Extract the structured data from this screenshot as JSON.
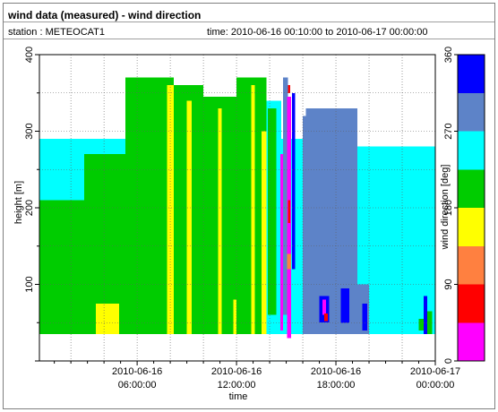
{
  "header": {
    "title": "wind data (measured) - wind direction",
    "station": "station : METEOCAT1",
    "time_range": "time: 2010-06-16 00:10:00 to 2010-06-17 00:00:00"
  },
  "colors": {
    "magenta": "#ff00ff",
    "red": "#ff0000",
    "orange": "#ff8040",
    "yellow": "#ffff00",
    "green": "#00cc00",
    "lightgreen": "#33dd33",
    "cyan": "#00ffff",
    "steel": "#5d83c8",
    "blue": "#0000ff"
  },
  "chart_data": {
    "type": "heatmap",
    "xlabel": "time",
    "ylabel": "height [m]",
    "colorbar_label": "wind direction [deg]",
    "x_ticks": [
      {
        "value": 6,
        "date": "2010-06-16",
        "time": "06:00:00"
      },
      {
        "value": 12,
        "date": "2010-06-16",
        "time": "12:00:00"
      },
      {
        "value": 18,
        "date": "2010-06-16",
        "time": "18:00:00"
      },
      {
        "value": 24,
        "date": "2010-06-17",
        "time": "00:00:00"
      }
    ],
    "xlim_hours": [
      0.1,
      24
    ],
    "ylim": [
      0,
      400
    ],
    "y_ticks": [
      100,
      200,
      300,
      400
    ],
    "colorbar": {
      "range": [
        0,
        360
      ],
      "ticks": [
        0,
        90,
        180,
        270,
        360
      ],
      "bins": [
        {
          "from": 0,
          "to": 45,
          "color": "#ff00ff"
        },
        {
          "from": 45,
          "to": 90,
          "color": "#ff0000"
        },
        {
          "from": 90,
          "to": 135,
          "color": "#ff8040"
        },
        {
          "from": 135,
          "to": 180,
          "color": "#ffff00"
        },
        {
          "from": 180,
          "to": 225,
          "color": "#00cc00"
        },
        {
          "from": 225,
          "to": 270,
          "color": "#00ffff"
        },
        {
          "from": 270,
          "to": 315,
          "color": "#5d83c8"
        },
        {
          "from": 315,
          "to": 360,
          "color": "#0000ff"
        }
      ]
    },
    "grid": true,
    "regions": [
      {
        "t0": 0.1,
        "t1": 5.3,
        "h0": 35,
        "h1": 290,
        "dir": 250
      },
      {
        "t0": 5.3,
        "t1": 13.8,
        "h0": 35,
        "h1": 250,
        "dir": 200
      },
      {
        "t0": 13.8,
        "t1": 14.7,
        "h0": 35,
        "h1": 340,
        "dir": 250
      },
      {
        "t0": 14.7,
        "t1": 16.2,
        "h0": 35,
        "h1": 290,
        "dir": 250
      },
      {
        "t0": 16.2,
        "t1": 19.3,
        "h0": 35,
        "h1": 330,
        "dir": 290
      },
      {
        "t0": 19.3,
        "t1": 24,
        "h0": 35,
        "h1": 280,
        "dir": 250
      },
      {
        "t0": 0.1,
        "t1": 2.8,
        "h0": 35,
        "h1": 210,
        "dir": 200
      },
      {
        "t0": 2.8,
        "t1": 5.3,
        "h0": 35,
        "h1": 270,
        "dir": 200
      },
      {
        "t0": 5.3,
        "t1": 8.2,
        "h0": 35,
        "h1": 370,
        "dir": 200
      },
      {
        "t0": 8.2,
        "t1": 10.0,
        "h0": 35,
        "h1": 360,
        "dir": 210
      },
      {
        "t0": 10.0,
        "t1": 12.0,
        "h0": 35,
        "h1": 345,
        "dir": 200
      },
      {
        "t0": 12.0,
        "t1": 13.8,
        "h0": 35,
        "h1": 370,
        "dir": 205
      },
      {
        "t0": 3.5,
        "t1": 4.9,
        "h0": 35,
        "h1": 75,
        "dir": 160
      },
      {
        "t0": 7.8,
        "t1": 8.2,
        "h0": 35,
        "h1": 360,
        "dir": 160
      },
      {
        "t0": 9.0,
        "t1": 9.3,
        "h0": 35,
        "h1": 340,
        "dir": 160
      },
      {
        "t0": 10.9,
        "t1": 11.1,
        "h0": 35,
        "h1": 330,
        "dir": 160
      },
      {
        "t0": 12.9,
        "t1": 13.1,
        "h0": 35,
        "h1": 360,
        "dir": 160
      },
      {
        "t0": 13.5,
        "t1": 13.8,
        "h0": 35,
        "h1": 300,
        "dir": 160
      },
      {
        "t0": 11.8,
        "t1": 12.0,
        "h0": 35,
        "h1": 80,
        "dir": 160
      },
      {
        "t0": 13.9,
        "t1": 14.4,
        "h0": 60,
        "h1": 330,
        "dir": 200
      },
      {
        "t0": 15.5,
        "t1": 16.2,
        "h0": 150,
        "h1": 290,
        "dir": 250
      },
      {
        "t0": 16.0,
        "t1": 16.5,
        "h0": 35,
        "h1": 320,
        "dir": 290
      },
      {
        "t0": 19.3,
        "t1": 20.0,
        "h0": 35,
        "h1": 100,
        "dir": 290
      },
      {
        "t0": 14.8,
        "t1": 15.1,
        "h0": 60,
        "h1": 370,
        "dir": 300
      },
      {
        "t0": 15.1,
        "t1": 15.25,
        "h0": 80,
        "h1": 340,
        "dir": 330
      },
      {
        "t0": 15.35,
        "t1": 15.55,
        "h0": 120,
        "h1": 350,
        "dir": 320
      },
      {
        "t0": 14.65,
        "t1": 14.8,
        "h0": 40,
        "h1": 270,
        "dir": 20
      },
      {
        "t0": 15.05,
        "t1": 15.3,
        "h0": 30,
        "h1": 345,
        "dir": 20
      },
      {
        "t0": 15.1,
        "t1": 15.25,
        "h0": 180,
        "h1": 210,
        "dir": 60
      },
      {
        "t0": 15.1,
        "t1": 15.25,
        "h0": 350,
        "h1": 360,
        "dir": 60
      },
      {
        "t0": 15.05,
        "t1": 15.3,
        "h0": 120,
        "h1": 140,
        "dir": 100
      },
      {
        "t0": 17.0,
        "t1": 17.6,
        "h0": 50,
        "h1": 85,
        "dir": 330
      },
      {
        "t0": 18.3,
        "t1": 18.8,
        "h0": 50,
        "h1": 95,
        "dir": 330
      },
      {
        "t0": 19.6,
        "t1": 19.9,
        "h0": 40,
        "h1": 75,
        "dir": 330
      },
      {
        "t0": 17.2,
        "t1": 17.4,
        "h0": 60,
        "h1": 80,
        "dir": 20
      },
      {
        "t0": 17.3,
        "t1": 17.5,
        "h0": 52,
        "h1": 62,
        "dir": 60
      },
      {
        "t0": 23.3,
        "t1": 23.5,
        "h0": 35,
        "h1": 85,
        "dir": 330
      },
      {
        "t0": 23.0,
        "t1": 23.3,
        "h0": 40,
        "h1": 55,
        "dir": 200
      },
      {
        "t0": 23.5,
        "t1": 23.8,
        "h0": 35,
        "h1": 65,
        "dir": 200
      },
      {
        "t0": 4.4,
        "t1": 4.9,
        "h0": 35,
        "h1": 45,
        "dir": 160
      }
    ]
  }
}
